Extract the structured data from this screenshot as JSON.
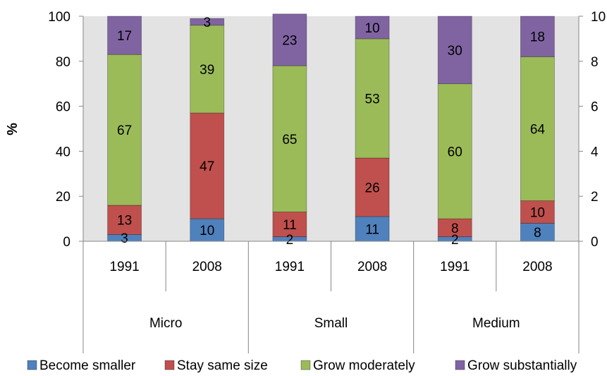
{
  "chart_data": {
    "type": "bar",
    "stacked": true,
    "categories": [
      "1991",
      "2008",
      "1991",
      "2008",
      "1991",
      "2008"
    ],
    "groups": [
      {
        "label": "Micro",
        "categories": [
          "1991",
          "2008"
        ]
      },
      {
        "label": "Small",
        "categories": [
          "1991",
          "2008"
        ]
      },
      {
        "label": "Medium",
        "categories": [
          "1991",
          "2008"
        ]
      }
    ],
    "series": [
      {
        "name": "Become smaller",
        "color": "#4F81BD",
        "values": [
          3,
          10,
          2,
          11,
          2,
          8
        ]
      },
      {
        "name": "Stay same size",
        "color": "#C0504D",
        "values": [
          13,
          47,
          11,
          26,
          8,
          10
        ]
      },
      {
        "name": "Grow moderately",
        "color": "#9BBB59",
        "values": [
          67,
          39,
          65,
          53,
          60,
          64
        ]
      },
      {
        "name": "Grow substantially",
        "color": "#8064A2",
        "values": [
          17,
          3,
          23,
          10,
          30,
          18
        ]
      }
    ],
    "ylabel": "%",
    "ylim": [
      0,
      100
    ],
    "yticks": [
      0,
      20,
      40,
      60,
      80,
      100
    ],
    "right_yticks": [
      "0",
      "2",
      "4",
      "6",
      "8",
      "10"
    ],
    "grid": false,
    "plot_background": "#E3E3E3",
    "legend": "bottom"
  }
}
